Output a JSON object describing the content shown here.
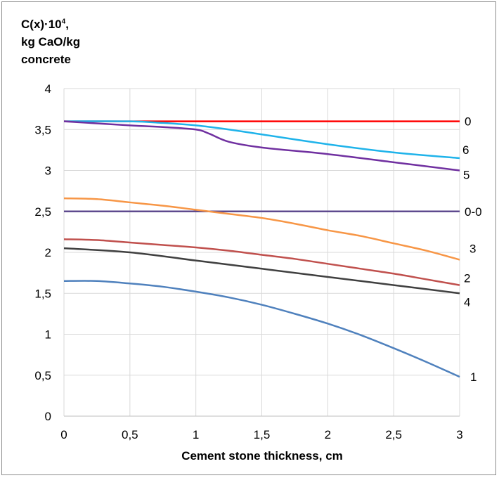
{
  "chart_data": {
    "type": "line",
    "title": "",
    "ylabel": [
      "C(x)·10",
      "4",
      ",",
      "kg CaO/kg",
      "concrete"
    ],
    "xlabel": "Cement stone thickness, cm",
    "xlim": [
      0,
      3
    ],
    "ylim": [
      0,
      4
    ],
    "xticks": [
      0,
      0.5,
      1,
      1.5,
      2,
      2.5,
      3
    ],
    "xtick_labels": [
      "0",
      "0,5",
      "1",
      "1,5",
      "2",
      "2,5",
      "3"
    ],
    "yticks": [
      0,
      0.5,
      1,
      1.5,
      2,
      2.5,
      3,
      3.5,
      4
    ],
    "ytick_labels": [
      "0",
      "0,5",
      "1",
      "1,5",
      "2",
      "2,5",
      "3",
      "3,5",
      "4"
    ],
    "grid": true,
    "legend": "labels at right end of each line",
    "series": [
      {
        "name": "0",
        "color": "#ff0000",
        "x": [
          0,
          0.5,
          1,
          1.5,
          2,
          2.5,
          3
        ],
        "y": [
          3.6,
          3.6,
          3.6,
          3.6,
          3.6,
          3.6,
          3.6
        ]
      },
      {
        "name": "6",
        "color": "#1fb3ea",
        "x": [
          0,
          0.5,
          0.75,
          1,
          1.25,
          1.5,
          2,
          2.5,
          3
        ],
        "y": [
          3.6,
          3.6,
          3.58,
          3.55,
          3.5,
          3.44,
          3.32,
          3.22,
          3.15
        ]
      },
      {
        "name": "5",
        "color": "#7030a0",
        "x": [
          0,
          0.5,
          0.75,
          1,
          1.1,
          1.25,
          1.5,
          2,
          2.5,
          3
        ],
        "y": [
          3.6,
          3.55,
          3.53,
          3.5,
          3.45,
          3.35,
          3.28,
          3.2,
          3.1,
          3.0
        ]
      },
      {
        "name": "0-0",
        "color": "#5e4a8e",
        "x": [
          0,
          0.5,
          1,
          1.5,
          2,
          2.5,
          3
        ],
        "y": [
          2.5,
          2.5,
          2.5,
          2.5,
          2.5,
          2.5,
          2.5
        ]
      },
      {
        "name": "3",
        "color": "#f79646",
        "x": [
          0,
          0.25,
          0.5,
          0.75,
          1,
          1.25,
          1.5,
          1.75,
          2,
          2.25,
          2.5,
          2.75,
          3
        ],
        "y": [
          2.66,
          2.65,
          2.61,
          2.57,
          2.52,
          2.47,
          2.42,
          2.35,
          2.27,
          2.2,
          2.11,
          2.02,
          1.91
        ]
      },
      {
        "name": "2",
        "color": "#c0504d",
        "x": [
          0,
          0.25,
          0.5,
          0.75,
          1,
          1.25,
          1.5,
          1.75,
          2,
          2.25,
          2.5,
          2.75,
          3
        ],
        "y": [
          2.16,
          2.15,
          2.12,
          2.09,
          2.06,
          2.02,
          1.97,
          1.92,
          1.86,
          1.8,
          1.74,
          1.67,
          1.6
        ]
      },
      {
        "name": "4",
        "color": "#404040",
        "x": [
          0,
          0.5,
          1,
          1.5,
          2,
          2.5,
          3
        ],
        "y": [
          2.05,
          2.0,
          1.9,
          1.8,
          1.7,
          1.6,
          1.5
        ]
      },
      {
        "name": "1",
        "color": "#4f81bd",
        "x": [
          0,
          0.25,
          0.5,
          0.75,
          1,
          1.25,
          1.5,
          1.75,
          2,
          2.25,
          2.5,
          2.75,
          3
        ],
        "y": [
          1.65,
          1.65,
          1.62,
          1.58,
          1.52,
          1.45,
          1.36,
          1.25,
          1.13,
          0.99,
          0.83,
          0.66,
          0.48
        ]
      }
    ]
  }
}
